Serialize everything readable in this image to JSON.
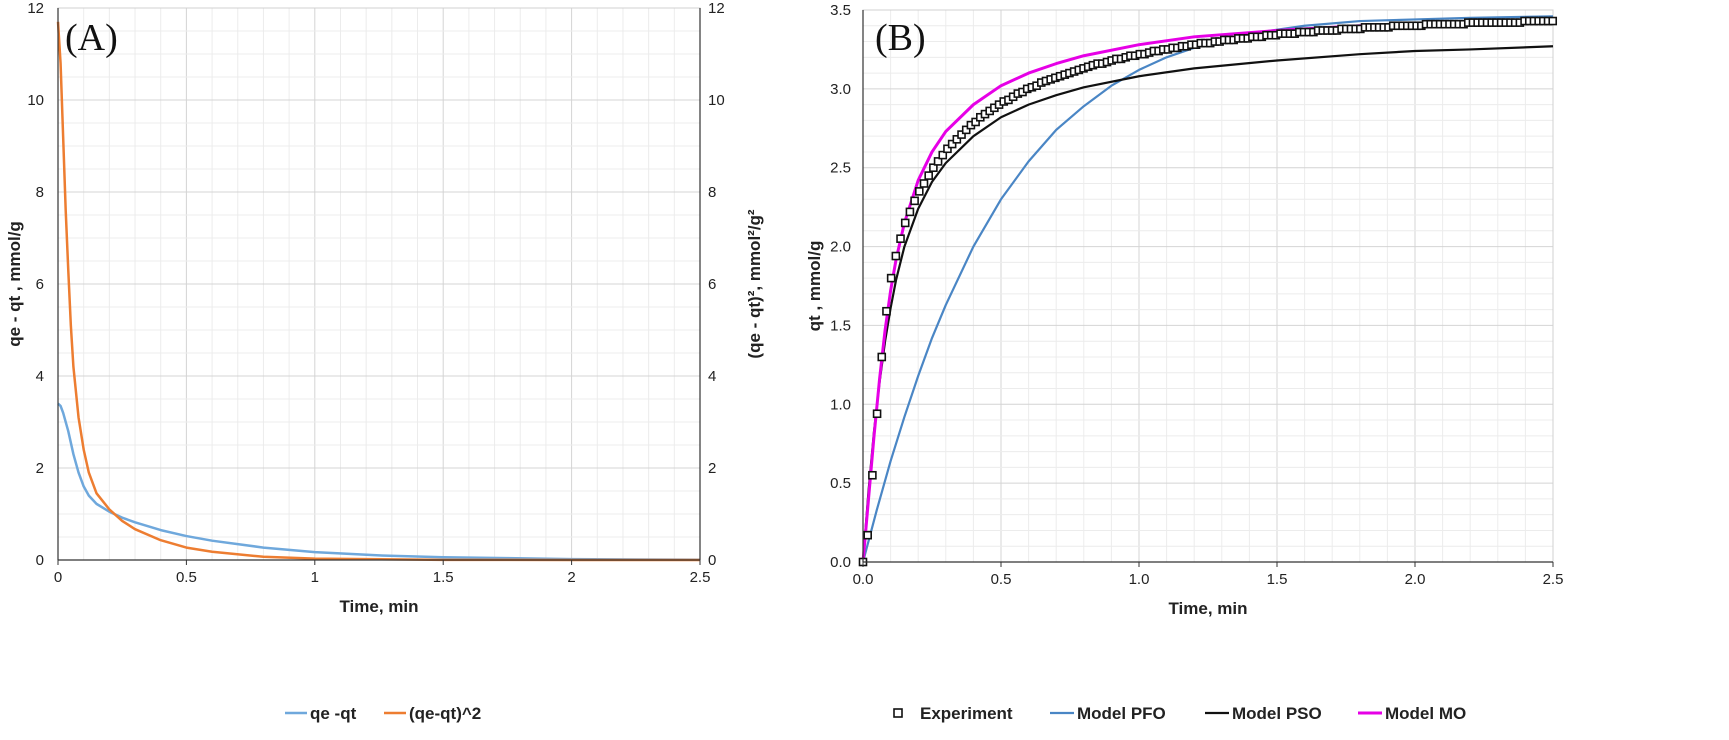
{
  "chart_data": [
    {
      "panel_label": "(A)",
      "type": "line",
      "xlabel": "Time, min",
      "ylabel_left": "qe - qt , mmol/g",
      "ylabel_right": "(qe - qt)², mmol²/g²",
      "xlim": [
        0,
        2.5
      ],
      "ylim_left": [
        0,
        12
      ],
      "ylim_right": [
        0,
        12
      ],
      "xticks": [
        "0",
        "0.5",
        "1",
        "1.5",
        "2",
        "2.5"
      ],
      "yticks_left": [
        "0",
        "2",
        "4",
        "6",
        "8",
        "10",
        "12"
      ],
      "yticks_right": [
        "0",
        "2",
        "4",
        "6",
        "8",
        "10",
        "12"
      ],
      "grid": true,
      "legend_position": "bottom",
      "series": [
        {
          "name": "qe -qt",
          "color": "#6fa8dc",
          "x": [
            0,
            0.01,
            0.02,
            0.04,
            0.06,
            0.08,
            0.1,
            0.12,
            0.15,
            0.2,
            0.25,
            0.3,
            0.4,
            0.5,
            0.6,
            0.8,
            1.0,
            1.25,
            1.5,
            1.75,
            2.0,
            2.25,
            2.5
          ],
          "y": [
            3.4,
            3.35,
            3.2,
            2.8,
            2.3,
            1.9,
            1.6,
            1.4,
            1.22,
            1.05,
            0.92,
            0.82,
            0.65,
            0.52,
            0.42,
            0.27,
            0.17,
            0.1,
            0.06,
            0.04,
            0.02,
            0.01,
            0.005
          ]
        },
        {
          "name": "(qe-qt)^2",
          "color": "#ed7d31",
          "x": [
            0,
            0.01,
            0.02,
            0.03,
            0.04,
            0.05,
            0.06,
            0.08,
            0.1,
            0.12,
            0.15,
            0.2,
            0.25,
            0.3,
            0.4,
            0.5,
            0.6,
            0.8,
            1.0,
            1.5,
            2.0,
            2.5
          ],
          "y": [
            11.7,
            10.8,
            9.2,
            7.6,
            6.3,
            5.1,
            4.2,
            3.1,
            2.4,
            1.9,
            1.45,
            1.1,
            0.85,
            0.67,
            0.43,
            0.27,
            0.18,
            0.07,
            0.03,
            0.004,
            0.0005,
            0
          ]
        }
      ]
    },
    {
      "panel_label": "(B)",
      "type": "line",
      "xlabel": "Time, min",
      "ylabel": "qt , mmol/g",
      "xlim": [
        0,
        2.5
      ],
      "ylim": [
        0,
        3.5
      ],
      "xticks": [
        "0.0",
        "0.5",
        "1.0",
        "1.5",
        "2.0",
        "2.5"
      ],
      "yticks": [
        "0.0",
        "0.5",
        "1.0",
        "1.5",
        "2.0",
        "2.5",
        "3.0",
        "3.5"
      ],
      "grid": true,
      "legend_position": "bottom",
      "series": [
        {
          "name": "Experiment",
          "marker": "square",
          "color": "#111111",
          "x": [
            0,
            0.017,
            0.034,
            0.051,
            0.068,
            0.085,
            0.102,
            0.119,
            0.136,
            0.153,
            0.17,
            0.187,
            0.204,
            0.221,
            0.238,
            0.255,
            0.272,
            0.289,
            0.306,
            0.323,
            0.34,
            0.357,
            0.374,
            0.391,
            0.408,
            0.425,
            0.442,
            0.459,
            0.476,
            0.493,
            0.51,
            0.527,
            0.544,
            0.561,
            0.578,
            0.595,
            0.612,
            0.629,
            0.646,
            0.663,
            0.68,
            0.697,
            0.714,
            0.731,
            0.748,
            0.765,
            0.782,
            0.799,
            0.816,
            0.833,
            0.85,
            0.867,
            0.884,
            0.901,
            0.918,
            0.935,
            0.952,
            0.969,
            0.986,
            1.003,
            1.02,
            1.037,
            1.054,
            1.071,
            1.088,
            1.105,
            1.122,
            1.139,
            1.156,
            1.173,
            1.19,
            1.207,
            1.224,
            1.241,
            1.258,
            1.275,
            1.292,
            1.309,
            1.326,
            1.343,
            1.36,
            1.377,
            1.394,
            1.411,
            1.428,
            1.445,
            1.462,
            1.479,
            1.496,
            1.513,
            1.53,
            1.547,
            1.564,
            1.581,
            1.598,
            1.615,
            1.632,
            1.649,
            1.666,
            1.683,
            1.7,
            1.717,
            1.734,
            1.751,
            1.768,
            1.785,
            1.802,
            1.819,
            1.836,
            1.853,
            1.87,
            1.887,
            1.904,
            1.921,
            1.938,
            1.955,
            1.972,
            1.989,
            2.006,
            2.023,
            2.04,
            2.057,
            2.074,
            2.091,
            2.108,
            2.125,
            2.142,
            2.159,
            2.176,
            2.193,
            2.21,
            2.227,
            2.244,
            2.261,
            2.278,
            2.295,
            2.312,
            2.329,
            2.346,
            2.363,
            2.38,
            2.397,
            2.414,
            2.431,
            2.448,
            2.465,
            2.482,
            2.499
          ],
          "y": [
            0.0,
            0.17,
            0.55,
            0.94,
            1.3,
            1.59,
            1.8,
            1.94,
            2.05,
            2.15,
            2.22,
            2.29,
            2.35,
            2.4,
            2.45,
            2.5,
            2.54,
            2.58,
            2.62,
            2.65,
            2.68,
            2.71,
            2.74,
            2.77,
            2.79,
            2.82,
            2.84,
            2.86,
            2.88,
            2.9,
            2.92,
            2.93,
            2.95,
            2.97,
            2.98,
            3.0,
            3.01,
            3.02,
            3.04,
            3.05,
            3.06,
            3.07,
            3.08,
            3.09,
            3.1,
            3.11,
            3.12,
            3.13,
            3.14,
            3.15,
            3.16,
            3.16,
            3.17,
            3.18,
            3.19,
            3.19,
            3.2,
            3.21,
            3.21,
            3.22,
            3.22,
            3.23,
            3.24,
            3.24,
            3.25,
            3.25,
            3.26,
            3.26,
            3.27,
            3.27,
            3.28,
            3.28,
            3.29,
            3.29,
            3.29,
            3.3,
            3.3,
            3.31,
            3.31,
            3.31,
            3.32,
            3.32,
            3.32,
            3.33,
            3.33,
            3.33,
            3.34,
            3.34,
            3.34,
            3.35,
            3.35,
            3.35,
            3.35,
            3.36,
            3.36,
            3.36,
            3.36,
            3.37,
            3.37,
            3.37,
            3.37,
            3.37,
            3.38,
            3.38,
            3.38,
            3.38,
            3.38,
            3.39,
            3.39,
            3.39,
            3.39,
            3.39,
            3.39,
            3.4,
            3.4,
            3.4,
            3.4,
            3.4,
            3.4,
            3.4,
            3.41,
            3.41,
            3.41,
            3.41,
            3.41,
            3.41,
            3.41,
            3.41,
            3.41,
            3.42,
            3.42,
            3.42,
            3.42,
            3.42,
            3.42,
            3.42,
            3.42,
            3.42,
            3.42,
            3.42,
            3.42,
            3.43,
            3.43,
            3.43,
            3.43,
            3.43,
            3.43,
            3.43
          ]
        },
        {
          "name": "Model PFO",
          "color": "#4a86c5",
          "x": [
            0,
            0.05,
            0.1,
            0.15,
            0.2,
            0.25,
            0.3,
            0.4,
            0.5,
            0.6,
            0.7,
            0.8,
            0.9,
            1.0,
            1.1,
            1.2,
            1.4,
            1.6,
            1.8,
            2.0,
            2.2,
            2.5
          ],
          "y": [
            0,
            0.33,
            0.64,
            0.92,
            1.18,
            1.42,
            1.63,
            2.0,
            2.3,
            2.54,
            2.74,
            2.89,
            3.02,
            3.12,
            3.2,
            3.26,
            3.35,
            3.4,
            3.43,
            3.44,
            3.45,
            3.46
          ]
        },
        {
          "name": "Model PSO",
          "color": "#111111",
          "x": [
            0,
            0.02,
            0.04,
            0.06,
            0.08,
            0.1,
            0.12,
            0.15,
            0.2,
            0.25,
            0.3,
            0.4,
            0.5,
            0.6,
            0.7,
            0.8,
            1.0,
            1.2,
            1.5,
            1.8,
            2.0,
            2.2,
            2.5
          ],
          "y": [
            0,
            0.45,
            0.83,
            1.14,
            1.4,
            1.61,
            1.79,
            2.0,
            2.24,
            2.41,
            2.53,
            2.7,
            2.82,
            2.9,
            2.96,
            3.01,
            3.08,
            3.13,
            3.18,
            3.22,
            3.24,
            3.25,
            3.27
          ]
        },
        {
          "name": "Model   MO",
          "color": "#e600e6",
          "x": [
            0,
            0.02,
            0.04,
            0.06,
            0.08,
            0.1,
            0.12,
            0.15,
            0.2,
            0.25,
            0.3,
            0.4,
            0.5,
            0.6,
            0.7,
            0.8,
            1.0,
            1.2,
            1.5,
            1.8,
            2.0,
            2.2,
            2.5
          ],
          "y": [
            0,
            0.4,
            0.8,
            1.16,
            1.47,
            1.72,
            1.92,
            2.15,
            2.42,
            2.6,
            2.73,
            2.9,
            3.02,
            3.1,
            3.16,
            3.21,
            3.28,
            3.33,
            3.37,
            3.4,
            3.41,
            3.42,
            3.43
          ]
        }
      ]
    }
  ]
}
